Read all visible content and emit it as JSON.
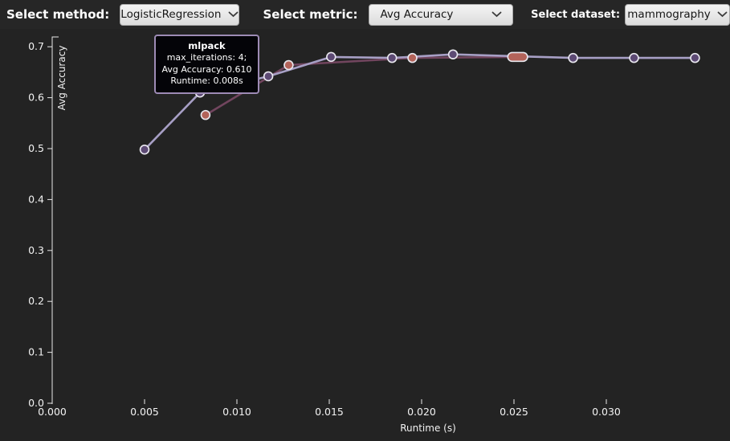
{
  "toolbar": {
    "method_label": "Select method:",
    "method_value": "LogisticRegression",
    "metric_label": "Select metric:",
    "metric_value": "Avg Accuracy",
    "dataset_label": "Select dataset:",
    "dataset_value": "mammography"
  },
  "tooltip": {
    "title": "mlpack",
    "lines": [
      "max_iterations: 4;",
      "Avg Accuracy: 0.610",
      "Runtime: 0.008s"
    ]
  },
  "chart_data": {
    "type": "line",
    "title": "",
    "xlabel": "Runtime (s)",
    "ylabel": "Avg Accuracy",
    "xlim": [
      0,
      0.0367
    ],
    "ylim": [
      0,
      0.72
    ],
    "grid": false,
    "legend": "none",
    "x_ticks": [
      {
        "v": 0.0,
        "label": "0.000"
      },
      {
        "v": 0.005,
        "label": "0.005"
      },
      {
        "v": 0.01,
        "label": "0.010"
      },
      {
        "v": 0.015,
        "label": "0.015"
      },
      {
        "v": 0.02,
        "label": "0.020"
      },
      {
        "v": 0.025,
        "label": "0.025"
      },
      {
        "v": 0.03,
        "label": "0.030"
      }
    ],
    "y_ticks": [
      {
        "v": 0.0,
        "label": "0.0"
      },
      {
        "v": 0.1,
        "label": "0.1"
      },
      {
        "v": 0.2,
        "label": "0.2"
      },
      {
        "v": 0.3,
        "label": "0.3"
      },
      {
        "v": 0.4,
        "label": "0.4"
      },
      {
        "v": 0.5,
        "label": "0.5"
      },
      {
        "v": 0.6,
        "label": "0.6"
      },
      {
        "v": 0.7,
        "label": "0.7"
      }
    ],
    "series": [
      {
        "name": "mlpack",
        "line_color": "#a79fc5",
        "point_color": "#5d4a74",
        "point_outline": "#e9e8ef",
        "points": [
          {
            "x": 0.005,
            "y": 0.498
          },
          {
            "x": 0.008,
            "y": 0.61
          },
          {
            "x": 0.0117,
            "y": 0.642
          },
          {
            "x": 0.0151,
            "y": 0.68
          },
          {
            "x": 0.0184,
            "y": 0.678
          },
          {
            "x": 0.0217,
            "y": 0.685
          },
          {
            "x": 0.0282,
            "y": 0.678
          },
          {
            "x": 0.0315,
            "y": 0.678
          },
          {
            "x": 0.0348,
            "y": 0.678
          }
        ]
      },
      {
        "name": "(unlabeled red series)",
        "line_color": "#71455e",
        "point_color": "#b3635a",
        "point_outline": "#e9e8ef",
        "points": [
          {
            "x": 0.0083,
            "y": 0.566
          },
          {
            "x": 0.0128,
            "y": 0.664
          },
          {
            "x": 0.0195,
            "y": 0.678
          },
          {
            "x": 0.0249,
            "y": 0.68
          },
          {
            "x": 0.0255,
            "y": 0.68
          }
        ]
      }
    ],
    "hovered_point": {
      "series": "mlpack",
      "max_iterations": 4,
      "avg_accuracy": 0.61,
      "runtime_s": 0.008
    },
    "axis_color": "#e8e8e8",
    "text_color": "#f2f2f2"
  }
}
